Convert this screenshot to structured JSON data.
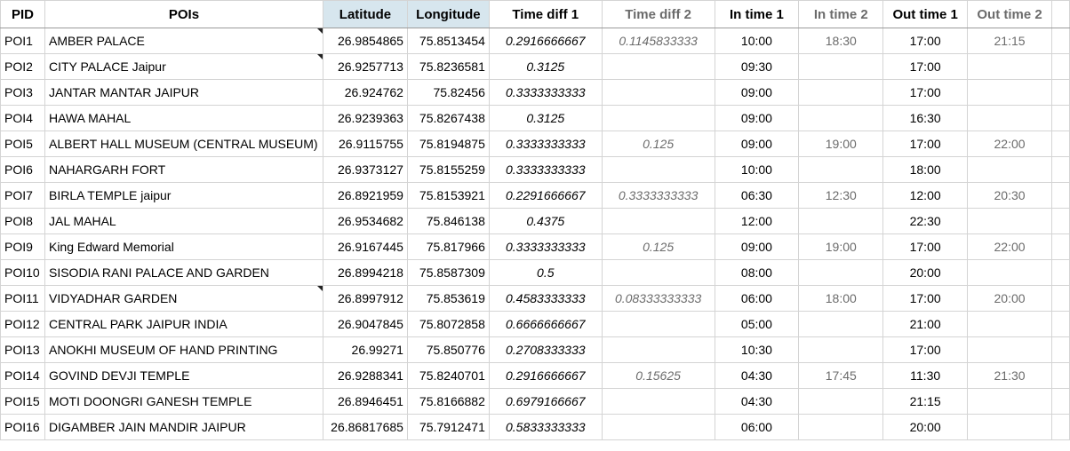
{
  "headers": {
    "pid": "PID",
    "pois": "POIs",
    "latitude": "Latitude",
    "longitude": "Longitude",
    "time_diff_1": "Time diff 1",
    "time_diff_2": "Time diff 2",
    "in_time_1": "In time 1",
    "in_time_2": "In time 2",
    "out_time_1": "Out time 1",
    "out_time_2": "Out time 2"
  },
  "rows": [
    {
      "pid": "POI1",
      "poi": "AMBER PALACE",
      "note": true,
      "lat": "26.9854865",
      "lon": "75.8513454",
      "d1": "0.2916666667",
      "d2": "0.1145833333",
      "in1": "10:00",
      "in2": "18:30",
      "out1": "17:00",
      "out2": "21:15"
    },
    {
      "pid": "POI2",
      "poi": "CITY PALACE Jaipur",
      "note": true,
      "lat": "26.9257713",
      "lon": "75.8236581",
      "d1": "0.3125",
      "d2": "",
      "in1": "09:30",
      "in2": "",
      "out1": "17:00",
      "out2": ""
    },
    {
      "pid": "POI3",
      "poi": "JANTAR MANTAR JAIPUR",
      "note": false,
      "lat": "26.924762",
      "lon": "75.82456",
      "d1": "0.3333333333",
      "d2": "",
      "in1": "09:00",
      "in2": "",
      "out1": "17:00",
      "out2": ""
    },
    {
      "pid": "POI4",
      "poi": "HAWA MAHAL",
      "note": false,
      "lat": "26.9239363",
      "lon": "75.8267438",
      "d1": "0.3125",
      "d2": "",
      "in1": "09:00",
      "in2": "",
      "out1": "16:30",
      "out2": ""
    },
    {
      "pid": "POI5",
      "poi": "ALBERT HALL MUSEUM (CENTRAL MUSEUM)",
      "note": false,
      "lat": "26.9115755",
      "lon": "75.8194875",
      "d1": "0.3333333333",
      "d2": "0.125",
      "in1": "09:00",
      "in2": "19:00",
      "out1": "17:00",
      "out2": "22:00"
    },
    {
      "pid": "POI6",
      "poi": "NAHARGARH FORT",
      "note": false,
      "lat": "26.9373127",
      "lon": "75.8155259",
      "d1": "0.3333333333",
      "d2": "",
      "in1": "10:00",
      "in2": "",
      "out1": "18:00",
      "out2": ""
    },
    {
      "pid": "POI7",
      "poi": "BIRLA TEMPLE jaipur",
      "note": false,
      "lat": "26.8921959",
      "lon": "75.8153921",
      "d1": "0.2291666667",
      "d2": "0.3333333333",
      "in1": "06:30",
      "in2": "12:30",
      "out1": "12:00",
      "out2": "20:30"
    },
    {
      "pid": "POI8",
      "poi": "JAL MAHAL",
      "note": false,
      "lat": "26.9534682",
      "lon": "75.846138",
      "d1": "0.4375",
      "d2": "",
      "in1": "12:00",
      "in2": "",
      "out1": "22:30",
      "out2": ""
    },
    {
      "pid": "POI9",
      "poi": "King Edward Memorial",
      "note": false,
      "lat": "26.9167445",
      "lon": "75.817966",
      "d1": "0.3333333333",
      "d2": "0.125",
      "in1": "09:00",
      "in2": "19:00",
      "out1": "17:00",
      "out2": "22:00"
    },
    {
      "pid": "POI10",
      "poi": "SISODIA RANI PALACE AND GARDEN",
      "note": false,
      "lat": "26.8994218",
      "lon": "75.8587309",
      "d1": "0.5",
      "d2": "",
      "in1": "08:00",
      "in2": "",
      "out1": "20:00",
      "out2": ""
    },
    {
      "pid": "POI11",
      "poi": "VIDYADHAR GARDEN",
      "note": true,
      "lat": "26.8997912",
      "lon": "75.853619",
      "d1": "0.4583333333",
      "d2": "0.08333333333",
      "in1": "06:00",
      "in2": "18:00",
      "out1": "17:00",
      "out2": "20:00"
    },
    {
      "pid": "POI12",
      "poi": "CENTRAL PARK JAIPUR INDIA",
      "note": false,
      "lat": "26.9047845",
      "lon": "75.8072858",
      "d1": "0.6666666667",
      "d2": "",
      "in1": "05:00",
      "in2": "",
      "out1": "21:00",
      "out2": ""
    },
    {
      "pid": "POI13",
      "poi": "ANOKHI MUSEUM OF HAND PRINTING",
      "note": false,
      "lat": "26.99271",
      "lon": "75.850776",
      "d1": "0.2708333333",
      "d2": "",
      "in1": "10:30",
      "in2": "",
      "out1": "17:00",
      "out2": ""
    },
    {
      "pid": "POI14",
      "poi": "GOVIND DEVJI TEMPLE",
      "note": false,
      "lat": "26.9288341",
      "lon": "75.8240701",
      "d1": "0.2916666667",
      "d2": "0.15625",
      "in1": "04:30",
      "in2": "17:45",
      "out1": "11:30",
      "out2": "21:30"
    },
    {
      "pid": "POI15",
      "poi": "MOTI DOONGRI GANESH TEMPLE",
      "note": false,
      "lat": "26.8946451",
      "lon": "75.8166882",
      "d1": "0.6979166667",
      "d2": "",
      "in1": "04:30",
      "in2": "",
      "out1": "21:15",
      "out2": ""
    },
    {
      "pid": "POI16",
      "poi": "DIGAMBER JAIN MANDIR JAIPUR",
      "note": false,
      "lat": "26.86817685",
      "lon": "75.7912471",
      "d1": "0.5833333333",
      "d2": "",
      "in1": "06:00",
      "in2": "",
      "out1": "20:00",
      "out2": ""
    }
  ]
}
